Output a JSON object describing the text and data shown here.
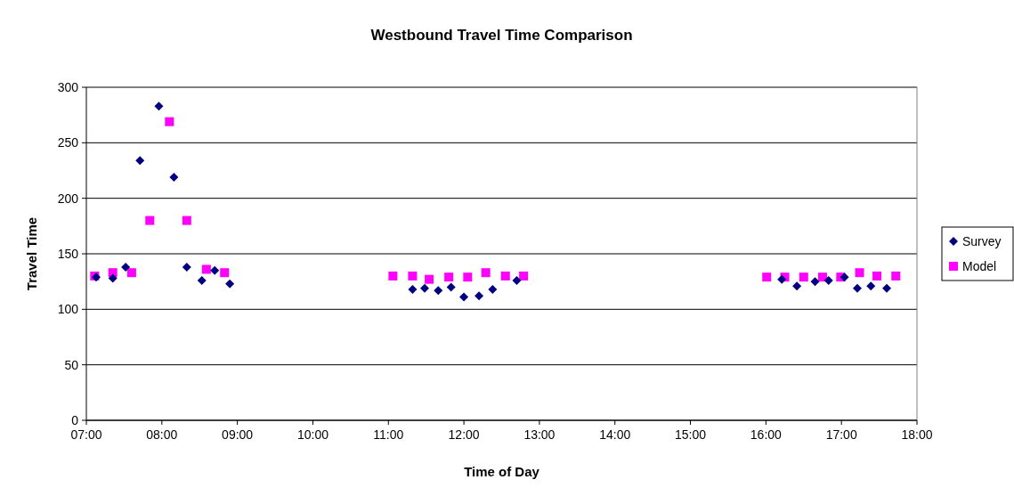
{
  "chart_data": {
    "type": "scatter",
    "title": "Westbound Travel Time Comparison",
    "xlabel": "Time of Day",
    "ylabel": "Travel Time",
    "xlim": [
      7,
      18
    ],
    "xticks": [
      {
        "value": 7,
        "label": "07:00"
      },
      {
        "value": 8,
        "label": "08:00"
      },
      {
        "value": 9,
        "label": "09:00"
      },
      {
        "value": 10,
        "label": "10:00"
      },
      {
        "value": 11,
        "label": "11:00"
      },
      {
        "value": 12,
        "label": "12:00"
      },
      {
        "value": 13,
        "label": "13:00"
      },
      {
        "value": 14,
        "label": "14:00"
      },
      {
        "value": 15,
        "label": "15:00"
      },
      {
        "value": 16,
        "label": "16:00"
      },
      {
        "value": 17,
        "label": "17:00"
      },
      {
        "value": 18,
        "label": "18:00"
      }
    ],
    "ylim": [
      0,
      300
    ],
    "yticks": [
      0,
      50,
      100,
      150,
      200,
      250,
      300
    ],
    "grid": "y",
    "legend": "right",
    "series": [
      {
        "name": "Survey",
        "color": "#000080",
        "marker": "diamond",
        "x": [
          7.13,
          7.35,
          7.52,
          7.71,
          7.96,
          8.16,
          8.33,
          8.53,
          8.7,
          8.9,
          11.32,
          11.48,
          11.66,
          11.83,
          12.0,
          12.2,
          12.38,
          12.7,
          16.21,
          16.41,
          16.65,
          16.83,
          17.04,
          17.21,
          17.39,
          17.6
        ],
        "values": [
          129,
          128,
          138,
          234,
          283,
          219,
          138,
          126,
          135,
          123,
          118,
          119,
          117,
          120,
          111,
          112,
          118,
          126,
          127,
          121,
          125,
          126,
          129,
          119,
          121,
          119
        ]
      },
      {
        "name": "Model",
        "color": "#ff00ff",
        "marker": "square",
        "x": [
          7.11,
          7.35,
          7.6,
          7.84,
          8.1,
          8.33,
          8.59,
          8.83,
          11.06,
          11.32,
          11.54,
          11.8,
          12.05,
          12.29,
          12.55,
          12.79,
          16.01,
          16.25,
          16.5,
          16.75,
          16.99,
          17.24,
          17.47,
          17.72
        ],
        "values": [
          130,
          133,
          133,
          180,
          269,
          180,
          136,
          133,
          130,
          130,
          127,
          129,
          129,
          133,
          130,
          130,
          129,
          129,
          129,
          129,
          129,
          133,
          130,
          130
        ]
      }
    ]
  }
}
